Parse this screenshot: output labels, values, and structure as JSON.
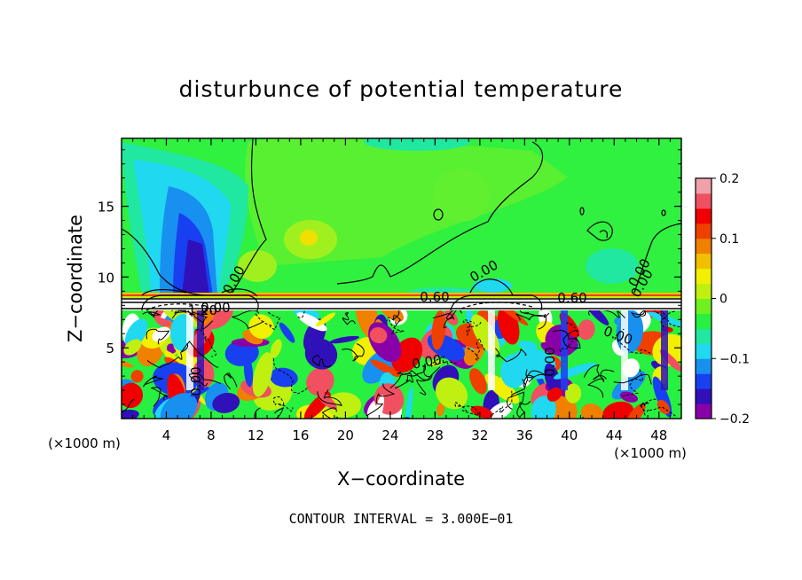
{
  "chart_data": {
    "type": "heatmap",
    "title": "disturbunce of potential temperature",
    "xlabel": "X−coordinate",
    "ylabel": "Z−coordinate",
    "x_unit": "(×1000 m)",
    "z_unit": "(×1000 m)",
    "x_ticks": [
      4,
      8,
      12,
      16,
      20,
      24,
      28,
      32,
      36,
      40,
      44,
      48
    ],
    "y_ticks": [
      5,
      10,
      15
    ],
    "xlim": [
      0,
      50
    ],
    "ylim": [
      0,
      19.8
    ],
    "colorbar": {
      "ticks": [
        "0.2",
        "0.1",
        "0",
        "−0.1",
        "−0.2"
      ],
      "tick_values": [
        0.2,
        0.1,
        0,
        -0.1,
        -0.2
      ],
      "range": [
        -0.2,
        0.2
      ],
      "colors": [
        "#8a00a8",
        "#3010b8",
        "#1840f0",
        "#1890f0",
        "#20d8f0",
        "#20e8a0",
        "#28f040",
        "#70f020",
        "#c0f010",
        "#f0f000",
        "#f0c000",
        "#f08000",
        "#f04000",
        "#f00000",
        "#f05060",
        "#f0a0a8"
      ]
    },
    "contour_labels": [
      "0.00",
      "0.60",
      "0.60",
      "−1.20",
      "0.00",
      "0.00",
      "0.00",
      "0.00",
      "0.00",
      "0.00",
      "0.00",
      "0.00"
    ],
    "contour_interval_text": "CONTOUR INTERVAL = 3.000E−01"
  }
}
